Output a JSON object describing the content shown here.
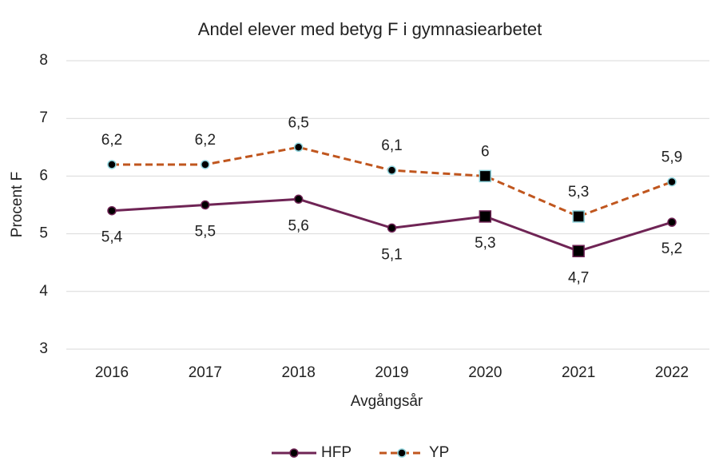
{
  "chart_data": {
    "type": "line",
    "title": "Andel elever med betyg F i gymnasiearbetet",
    "x_label": "Avgångsår",
    "y_label": "Procent F",
    "categories": [
      "2016",
      "2017",
      "2018",
      "2019",
      "2020",
      "2021",
      "2022"
    ],
    "series": [
      {
        "name": "HFP",
        "color": "#6f2455",
        "dash": "solid",
        "label_position": "below",
        "markers": [
          "circle",
          "circle",
          "circle",
          "circle",
          "square",
          "square",
          "circle"
        ],
        "values": [
          5.4,
          5.5,
          5.6,
          5.1,
          5.3,
          4.7,
          5.2
        ],
        "value_labels": [
          "5,4",
          "5,5",
          "5,6",
          "5,1",
          "5,3",
          "4,7",
          "5,2"
        ]
      },
      {
        "name": "YP",
        "color": "#c0561e",
        "dash": "dashed",
        "label_position": "above",
        "markers": [
          "circle",
          "circle",
          "circle",
          "circle",
          "square",
          "square",
          "circle"
        ],
        "values": [
          6.2,
          6.2,
          6.5,
          6.1,
          6.0,
          5.3,
          5.9
        ],
        "value_labels": [
          "6,2",
          "6,2",
          "6,5",
          "6,1",
          "6",
          "5,3",
          "5,9"
        ]
      }
    ],
    "ylim": [
      3,
      8
    ],
    "yticks": [
      3,
      4,
      5,
      6,
      7,
      8
    ],
    "grid": true,
    "legend": "bottom"
  }
}
